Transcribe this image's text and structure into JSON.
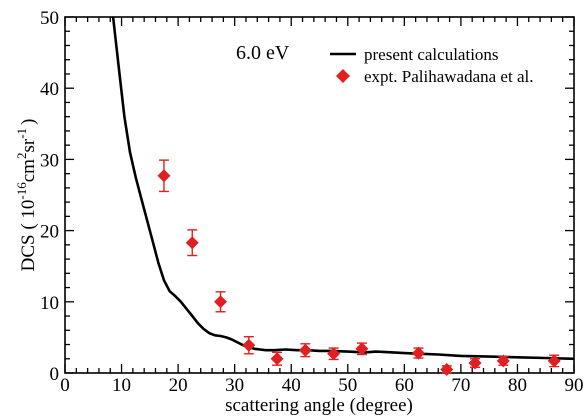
{
  "chart_data": {
    "type": "scatter",
    "annotation": "6.0 eV",
    "xlabel": "scattering angle (degree)",
    "ylabel_parts": {
      "prefix": "DCS ( 10",
      "exp1": "-16",
      "mid1": "cm",
      "exp2": "2",
      "mid2": "sr",
      "exp3": "-1",
      "suffix": ")"
    },
    "xlim": [
      0,
      90
    ],
    "ylim": [
      0,
      50
    ],
    "x_ticks": [
      0,
      10,
      20,
      30,
      40,
      50,
      60,
      70,
      80,
      90
    ],
    "y_ticks": [
      0,
      10,
      20,
      30,
      40,
      50
    ],
    "x_tick_labels": [
      "0",
      "10",
      "20",
      "30",
      "40",
      "50",
      "60",
      "70",
      "80",
      "90"
    ],
    "y_tick_labels": [
      "0",
      "10",
      "20",
      "30",
      "40",
      "50"
    ],
    "grid": false,
    "legend_position": "top-right",
    "series": [
      {
        "name": "present calculations",
        "kind": "line",
        "color": "#000000",
        "x": [
          8.5,
          9.5,
          10.5,
          11.5,
          12.5,
          13.5,
          14.5,
          15.5,
          16.5,
          17.5,
          18.5,
          19.5,
          20.5,
          21.5,
          22.5,
          23.5,
          24.5,
          25.5,
          26.5,
          27.5,
          28.5,
          29.5,
          30.5,
          31.5,
          32.5,
          33.5,
          34.5,
          35.5,
          37,
          39,
          41,
          43,
          45,
          47,
          50,
          53,
          55,
          58,
          60,
          63,
          66,
          70,
          75,
          80,
          85,
          90
        ],
        "y": [
          50,
          43,
          36,
          31,
          27.5,
          24.5,
          21.5,
          18.5,
          15.5,
          13,
          11.5,
          10.8,
          10,
          9,
          8,
          7,
          6.2,
          5.6,
          5.3,
          5.2,
          5.0,
          4.7,
          4.3,
          3.9,
          3.6,
          3.4,
          3.3,
          3.2,
          3.2,
          3.3,
          3.2,
          3.2,
          3.1,
          3.1,
          3.0,
          2.9,
          3.0,
          2.9,
          2.8,
          2.7,
          2.6,
          2.4,
          2.3,
          2.2,
          2.1,
          2.0
        ]
      },
      {
        "name": "expt. Palihawadana et al.",
        "kind": "scatter",
        "color": "#e02020",
        "x": [
          17.5,
          22.5,
          27.5,
          32.5,
          37.5,
          42.5,
          47.5,
          52.5,
          62.5,
          67.5,
          72.5,
          77.5,
          86.5
        ],
        "y": [
          27.7,
          18.3,
          10.0,
          3.9,
          2.0,
          3.2,
          2.7,
          3.4,
          2.8,
          0.5,
          1.4,
          1.7,
          1.7
        ],
        "err": [
          2.2,
          1.8,
          1.4,
          1.2,
          0.9,
          0.9,
          0.8,
          0.8,
          0.7,
          0.5,
          0.6,
          0.6,
          0.8
        ]
      }
    ]
  }
}
